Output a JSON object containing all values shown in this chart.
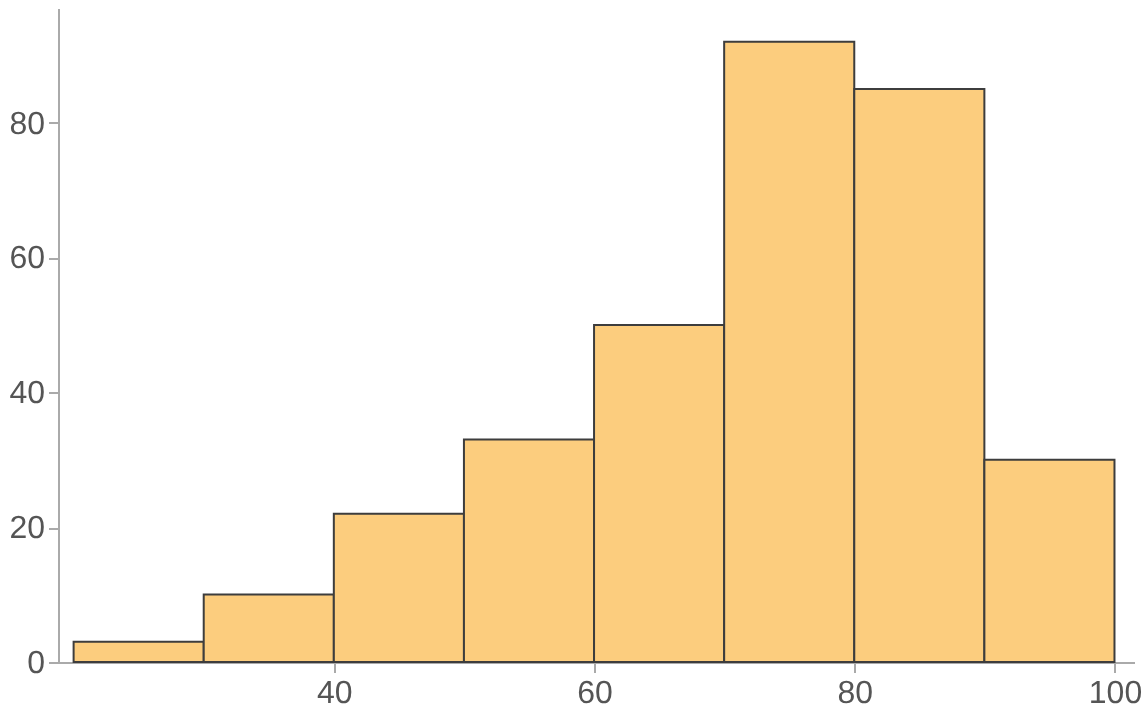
{
  "chart_data": {
    "type": "histogram",
    "bins": [
      20,
      30,
      40,
      50,
      60,
      70,
      80,
      90,
      100
    ],
    "values": [
      3,
      10,
      22,
      33,
      50,
      92,
      85,
      30
    ],
    "color": "#fccd7e",
    "xlim": [
      18.8,
      101.5
    ],
    "ylim": [
      0,
      97
    ],
    "xticks": [
      40,
      60,
      80,
      100
    ],
    "yticks": [
      0,
      20,
      40,
      60,
      80
    ],
    "grid": false
  }
}
